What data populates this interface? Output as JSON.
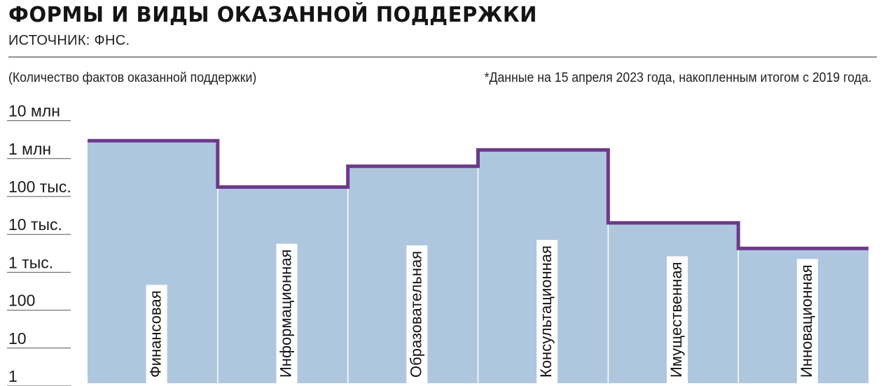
{
  "header": {
    "title": "ФОРМЫ И ВИДЫ ОКАЗАННОЙ ПОДДЕРЖКИ",
    "source": "ИСТОЧНИК: ФНС."
  },
  "colors": {
    "bar_fill": "#afc6df",
    "step_line": "#6b3a8a",
    "label_bg": "#ffffff"
  },
  "chart_data": {
    "type": "bar",
    "subtitle": "(Количество фактов оказанной поддержки)",
    "note": "*Данные на 15 апреля 2023 года, накопленным итогом с 2019 года.",
    "y_scale": "log",
    "ylim": [
      1,
      10000000
    ],
    "y_ticks": [
      {
        "value": 10000000,
        "label": "10 млн"
      },
      {
        "value": 1000000,
        "label": "1 млн"
      },
      {
        "value": 100000,
        "label": "100 тыс."
      },
      {
        "value": 10000,
        "label": "10 тыс."
      },
      {
        "value": 1000,
        "label": "1 тыс."
      },
      {
        "value": 100,
        "label": "100"
      },
      {
        "value": 10,
        "label": "10"
      },
      {
        "value": 1,
        "label": "1"
      }
    ],
    "categories": [
      "Финансовая",
      "Информационная",
      "Образовательная",
      "Консультационная",
      "Имущественная",
      "Инновационная"
    ],
    "values": [
      2500000,
      150000,
      530000,
      1430000,
      17000,
      3600
    ],
    "grid": false,
    "legend": "none"
  }
}
